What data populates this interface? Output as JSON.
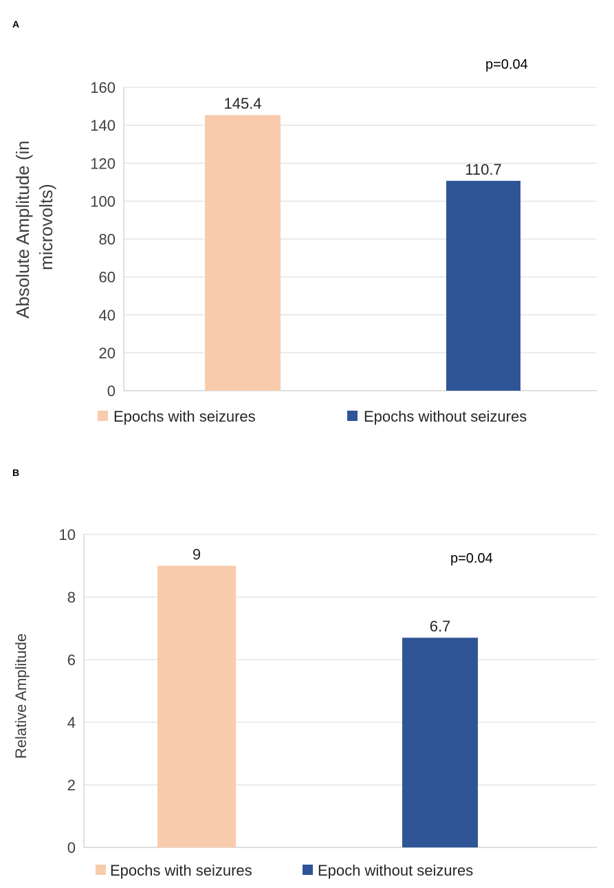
{
  "chart_data": [
    {
      "type": "bar",
      "panel": "A",
      "categories": [
        "Epochs with seizures",
        "Epochs without seizures"
      ],
      "values": [
        145.4,
        110.7
      ],
      "data_labels": [
        "145.4",
        "110.7"
      ],
      "colors": [
        "#f8cbad",
        "#2f5597"
      ],
      "title": "",
      "xlabel": "",
      "ylabel": "Absolute Amplitude (in microvolts)",
      "ylabel_lines": [
        "Absolute Amplitude (in",
        "microvolts)"
      ],
      "ylim": [
        0,
        160
      ],
      "yticks": [
        "0",
        "20",
        "40",
        "60",
        "80",
        "100",
        "120",
        "140",
        "160"
      ],
      "annotation": "p=0.04",
      "legend": [
        "Epochs with seizures",
        "Epochs without seizures"
      ],
      "legend_position": "bottom",
      "grid": true
    },
    {
      "type": "bar",
      "panel": "B",
      "categories": [
        "Epochs with seizures",
        "Epoch without seizures"
      ],
      "values": [
        9,
        6.7
      ],
      "data_labels": [
        "9",
        "6.7"
      ],
      "colors": [
        "#f8cbad",
        "#2f5597"
      ],
      "title": "",
      "xlabel": "",
      "ylabel": "Relative Amplitude",
      "ylim": [
        0,
        10
      ],
      "yticks": [
        "0",
        "2",
        "4",
        "6",
        "8",
        "10"
      ],
      "annotation": "p=0.04",
      "legend": [
        "Epochs with seizures",
        "Epoch without seizures"
      ],
      "legend_position": "bottom",
      "grid": true
    }
  ]
}
